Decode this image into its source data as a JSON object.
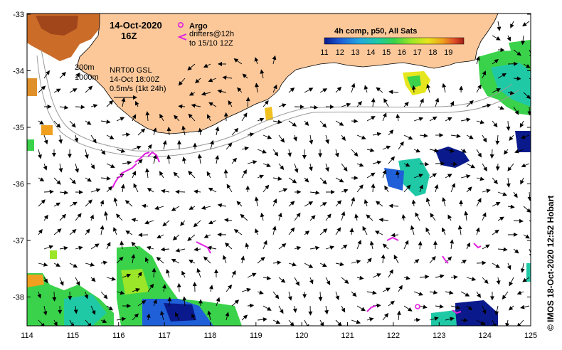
{
  "header": {
    "date": "14-Oct-2020",
    "hour": "16Z"
  },
  "argo": {
    "label": "Argo",
    "color": "#e020e0"
  },
  "drifters": {
    "label_line1": "drifters@12h",
    "label_line2": "to 15/10 12Z",
    "color": "#e020e0"
  },
  "contours": {
    "label_200": "200m",
    "label_1000": "1000m"
  },
  "current_info": {
    "line1": "NRT00 GSL",
    "line2": "14-Oct 18:00Z",
    "line3": "0.5m/s (1kt 24h)"
  },
  "colorbar": {
    "title": "4h comp, p50, All Sats",
    "min": 11,
    "max": 20,
    "tick_labels": [
      "11",
      "12",
      "13",
      "14",
      "15",
      "16",
      "17",
      "18",
      "19"
    ],
    "colors": [
      "#0a1a8c",
      "#1f5fd8",
      "#23a8e0",
      "#1fc9a6",
      "#3ad24a",
      "#9be628",
      "#e6e61e",
      "#f0a01e",
      "#e0502a",
      "#a01e14"
    ]
  },
  "credit": "© IMOS 18-Oct-2020 12:52 Hobart",
  "axes": {
    "x_ticks": [
      "114",
      "115",
      "116",
      "117",
      "118",
      "119",
      "120",
      "121",
      "122",
      "123",
      "124",
      "125"
    ],
    "y_ticks": [
      "-33",
      "-34",
      "-35",
      "-36",
      "-37",
      "-38"
    ]
  },
  "land_color": "#fcc89a"
}
